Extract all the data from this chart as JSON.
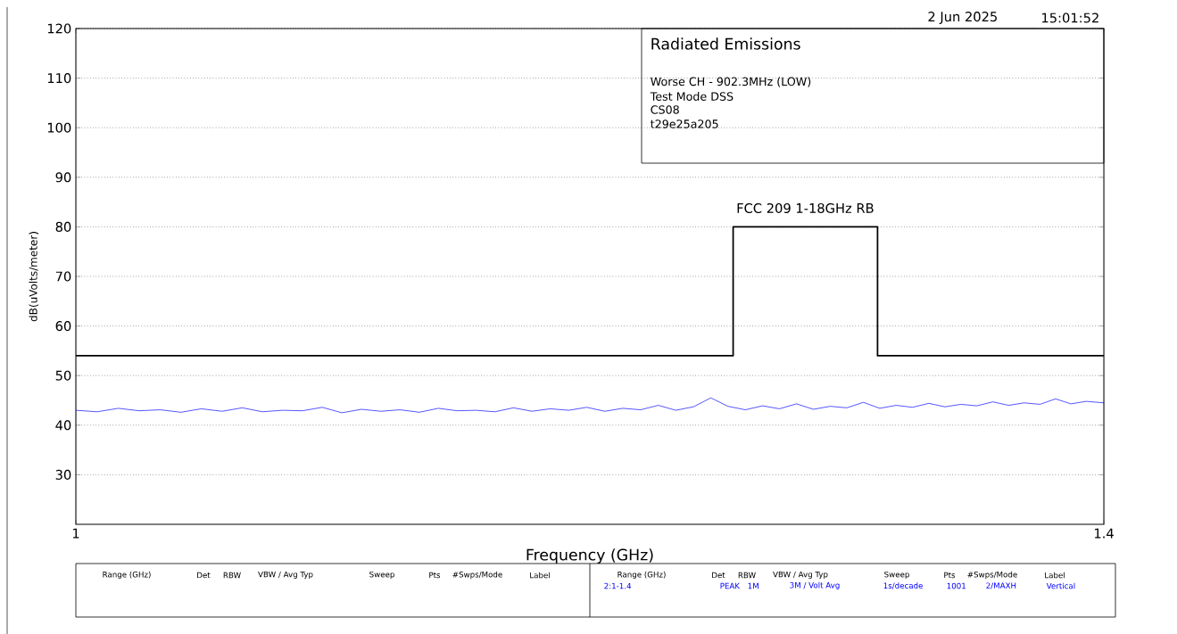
{
  "chart_data": {
    "type": "line",
    "title": "Radiated Emissions",
    "xlabel": "Frequency (GHz)",
    "ylabel": "dB(uVolts/meter)",
    "log": "x",
    "grid": "y",
    "xlim": [
      1,
      1.4
    ],
    "xticks": [
      1,
      1.4
    ],
    "ylim": [
      20,
      120
    ],
    "yticks": [
      30,
      40,
      50,
      60,
      70,
      80,
      90,
      100,
      110,
      120
    ],
    "series": [
      {
        "name": "FCC 209 1-18GHz RB",
        "type": "step",
        "color": "#000000",
        "x": [
          1,
          1.24,
          1.3,
          1.4
        ],
        "values": [
          54,
          80,
          54,
          54
        ]
      },
      {
        "color": "#0000ff",
        "x": [
          1,
          1.007,
          1.014,
          1.021,
          1.028,
          1.035,
          1.042,
          1.049,
          1.056,
          1.063,
          1.07,
          1.077,
          1.084,
          1.091,
          1.098,
          1.105,
          1.112,
          1.119,
          1.126,
          1.133,
          1.14,
          1.147,
          1.154,
          1.161,
          1.168,
          1.175,
          1.182,
          1.189,
          1.196,
          1.203,
          1.21,
          1.217,
          1.224,
          1.231,
          1.238,
          1.245,
          1.252,
          1.259,
          1.266,
          1.273,
          1.28,
          1.287,
          1.294,
          1.301,
          1.308,
          1.315,
          1.322,
          1.329,
          1.336,
          1.343,
          1.35,
          1.357,
          1.364,
          1.371,
          1.378,
          1.385,
          1.392,
          1.4
        ],
        "values": [
          43.0,
          42.7,
          43.4,
          42.9,
          43.1,
          42.6,
          43.3,
          42.8,
          43.5,
          42.7,
          43.0,
          42.9,
          43.6,
          42.5,
          43.2,
          42.8,
          43.1,
          42.6,
          43.4,
          42.9,
          43.0,
          42.7,
          43.5,
          42.8,
          43.3,
          43.0,
          43.6,
          42.8,
          43.4,
          43.1,
          44.0,
          43.0,
          43.7,
          45.5,
          43.8,
          43.1,
          43.9,
          43.3,
          44.3,
          43.2,
          43.8,
          43.5,
          44.6,
          43.4,
          44.0,
          43.6,
          44.4,
          43.7,
          44.2,
          43.9,
          44.7,
          44.0,
          44.5,
          44.2,
          45.3,
          44.3,
          44.8,
          44.5
        ]
      }
    ],
    "annotations": [
      "Worse CH - 902.3MHz (LOW)",
      "Test Mode DSS",
      "CS08",
      "t29e25a205",
      "2 Jun 2025",
      "15:01:52",
      "Range (GHz)",
      "Det",
      "RBW",
      "VBW / Avg Typ",
      "Sweep",
      "Pts",
      "#Swps/Mode",
      "Label",
      "Range (GHz)",
      "Det",
      "RBW",
      "VBW / Avg Typ",
      "Sweep",
      "Pts",
      "#Swps/Mode",
      "Label",
      "2:1-1.4",
      "PEAK",
      "1M",
      "3M / Volt Avg",
      "1s/decade",
      "1001",
      "2/MAXH",
      "Vertical"
    ]
  }
}
